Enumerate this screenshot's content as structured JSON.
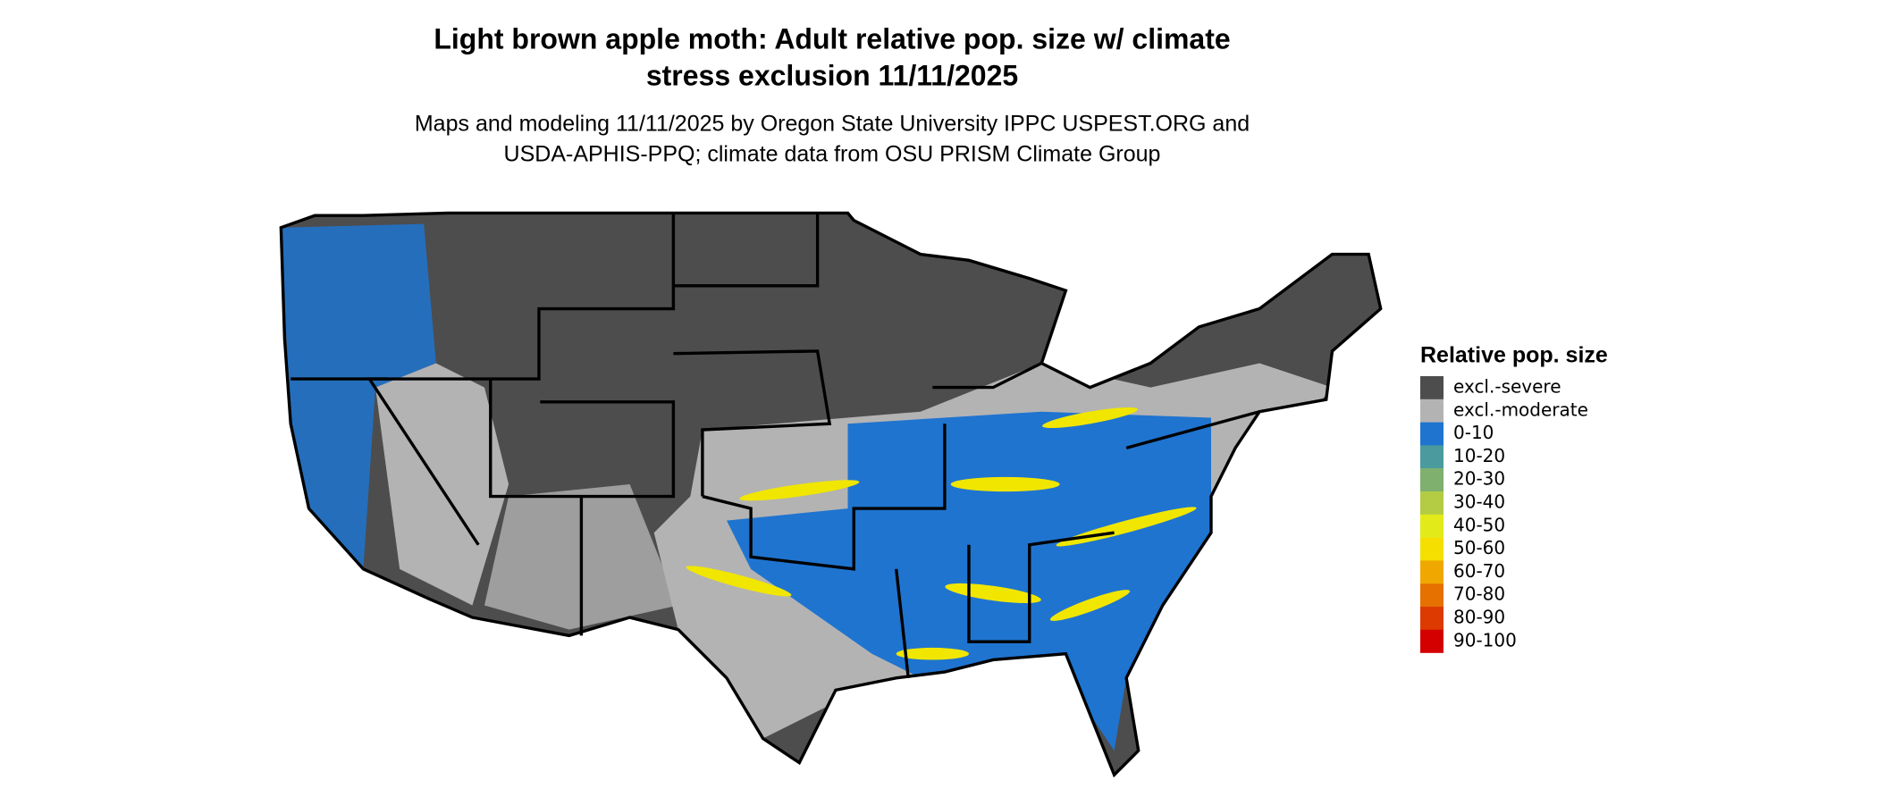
{
  "title": [
    "Light brown apple moth: Adult relative pop. size w/ climate",
    "stress exclusion 11/11/2025"
  ],
  "subtitle": [
    "Maps and modeling 11/11/2025 by Oregon State University IPPC USPEST.ORG and",
    "USDA-APHIS-PPQ; climate data from OSU PRISM Climate Group"
  ],
  "legend": {
    "title": "Relative pop. size",
    "items": [
      {
        "label": "excl.-severe",
        "color": "#4d4d4d"
      },
      {
        "label": "excl.-moderate",
        "color": "#b3b3b3"
      },
      {
        "label": "0-10",
        "color": "#1f74d0"
      },
      {
        "label": "10-20",
        "color": "#4a9a9e"
      },
      {
        "label": "20-30",
        "color": "#7fb06e"
      },
      {
        "label": "30-40",
        "color": "#b3cc43"
      },
      {
        "label": "40-50",
        "color": "#e3ea1a"
      },
      {
        "label": "50-60",
        "color": "#f5df00"
      },
      {
        "label": "60-70",
        "color": "#f0a800"
      },
      {
        "label": "70-80",
        "color": "#e67000"
      },
      {
        "label": "80-90",
        "color": "#dc3a00"
      },
      {
        "label": "90-100",
        "color": "#d40000"
      }
    ]
  }
}
